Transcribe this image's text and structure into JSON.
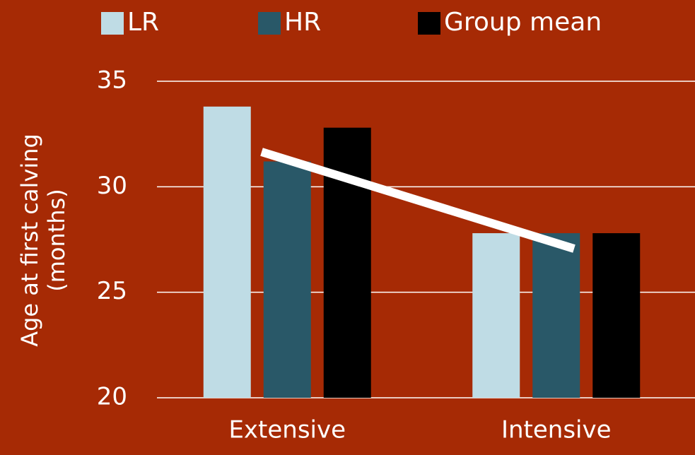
{
  "chart_data": {
    "type": "bar",
    "ylabel": [
      "Age at first calving",
      "(months)"
    ],
    "categories": [
      "Extensive",
      "Intensive"
    ],
    "series": [
      {
        "name": "LR",
        "color": "#bfdce5",
        "values": [
          33.8,
          27.8
        ]
      },
      {
        "name": "HR",
        "color": "#295868",
        "values": [
          31.2,
          27.8
        ]
      },
      {
        "name": "Group mean",
        "color": "#000000",
        "values": [
          32.8,
          27.8
        ]
      }
    ],
    "ylim": [
      20,
      35
    ],
    "yticks": [
      20,
      25,
      30,
      35
    ],
    "grid": true,
    "legend": "top"
  }
}
